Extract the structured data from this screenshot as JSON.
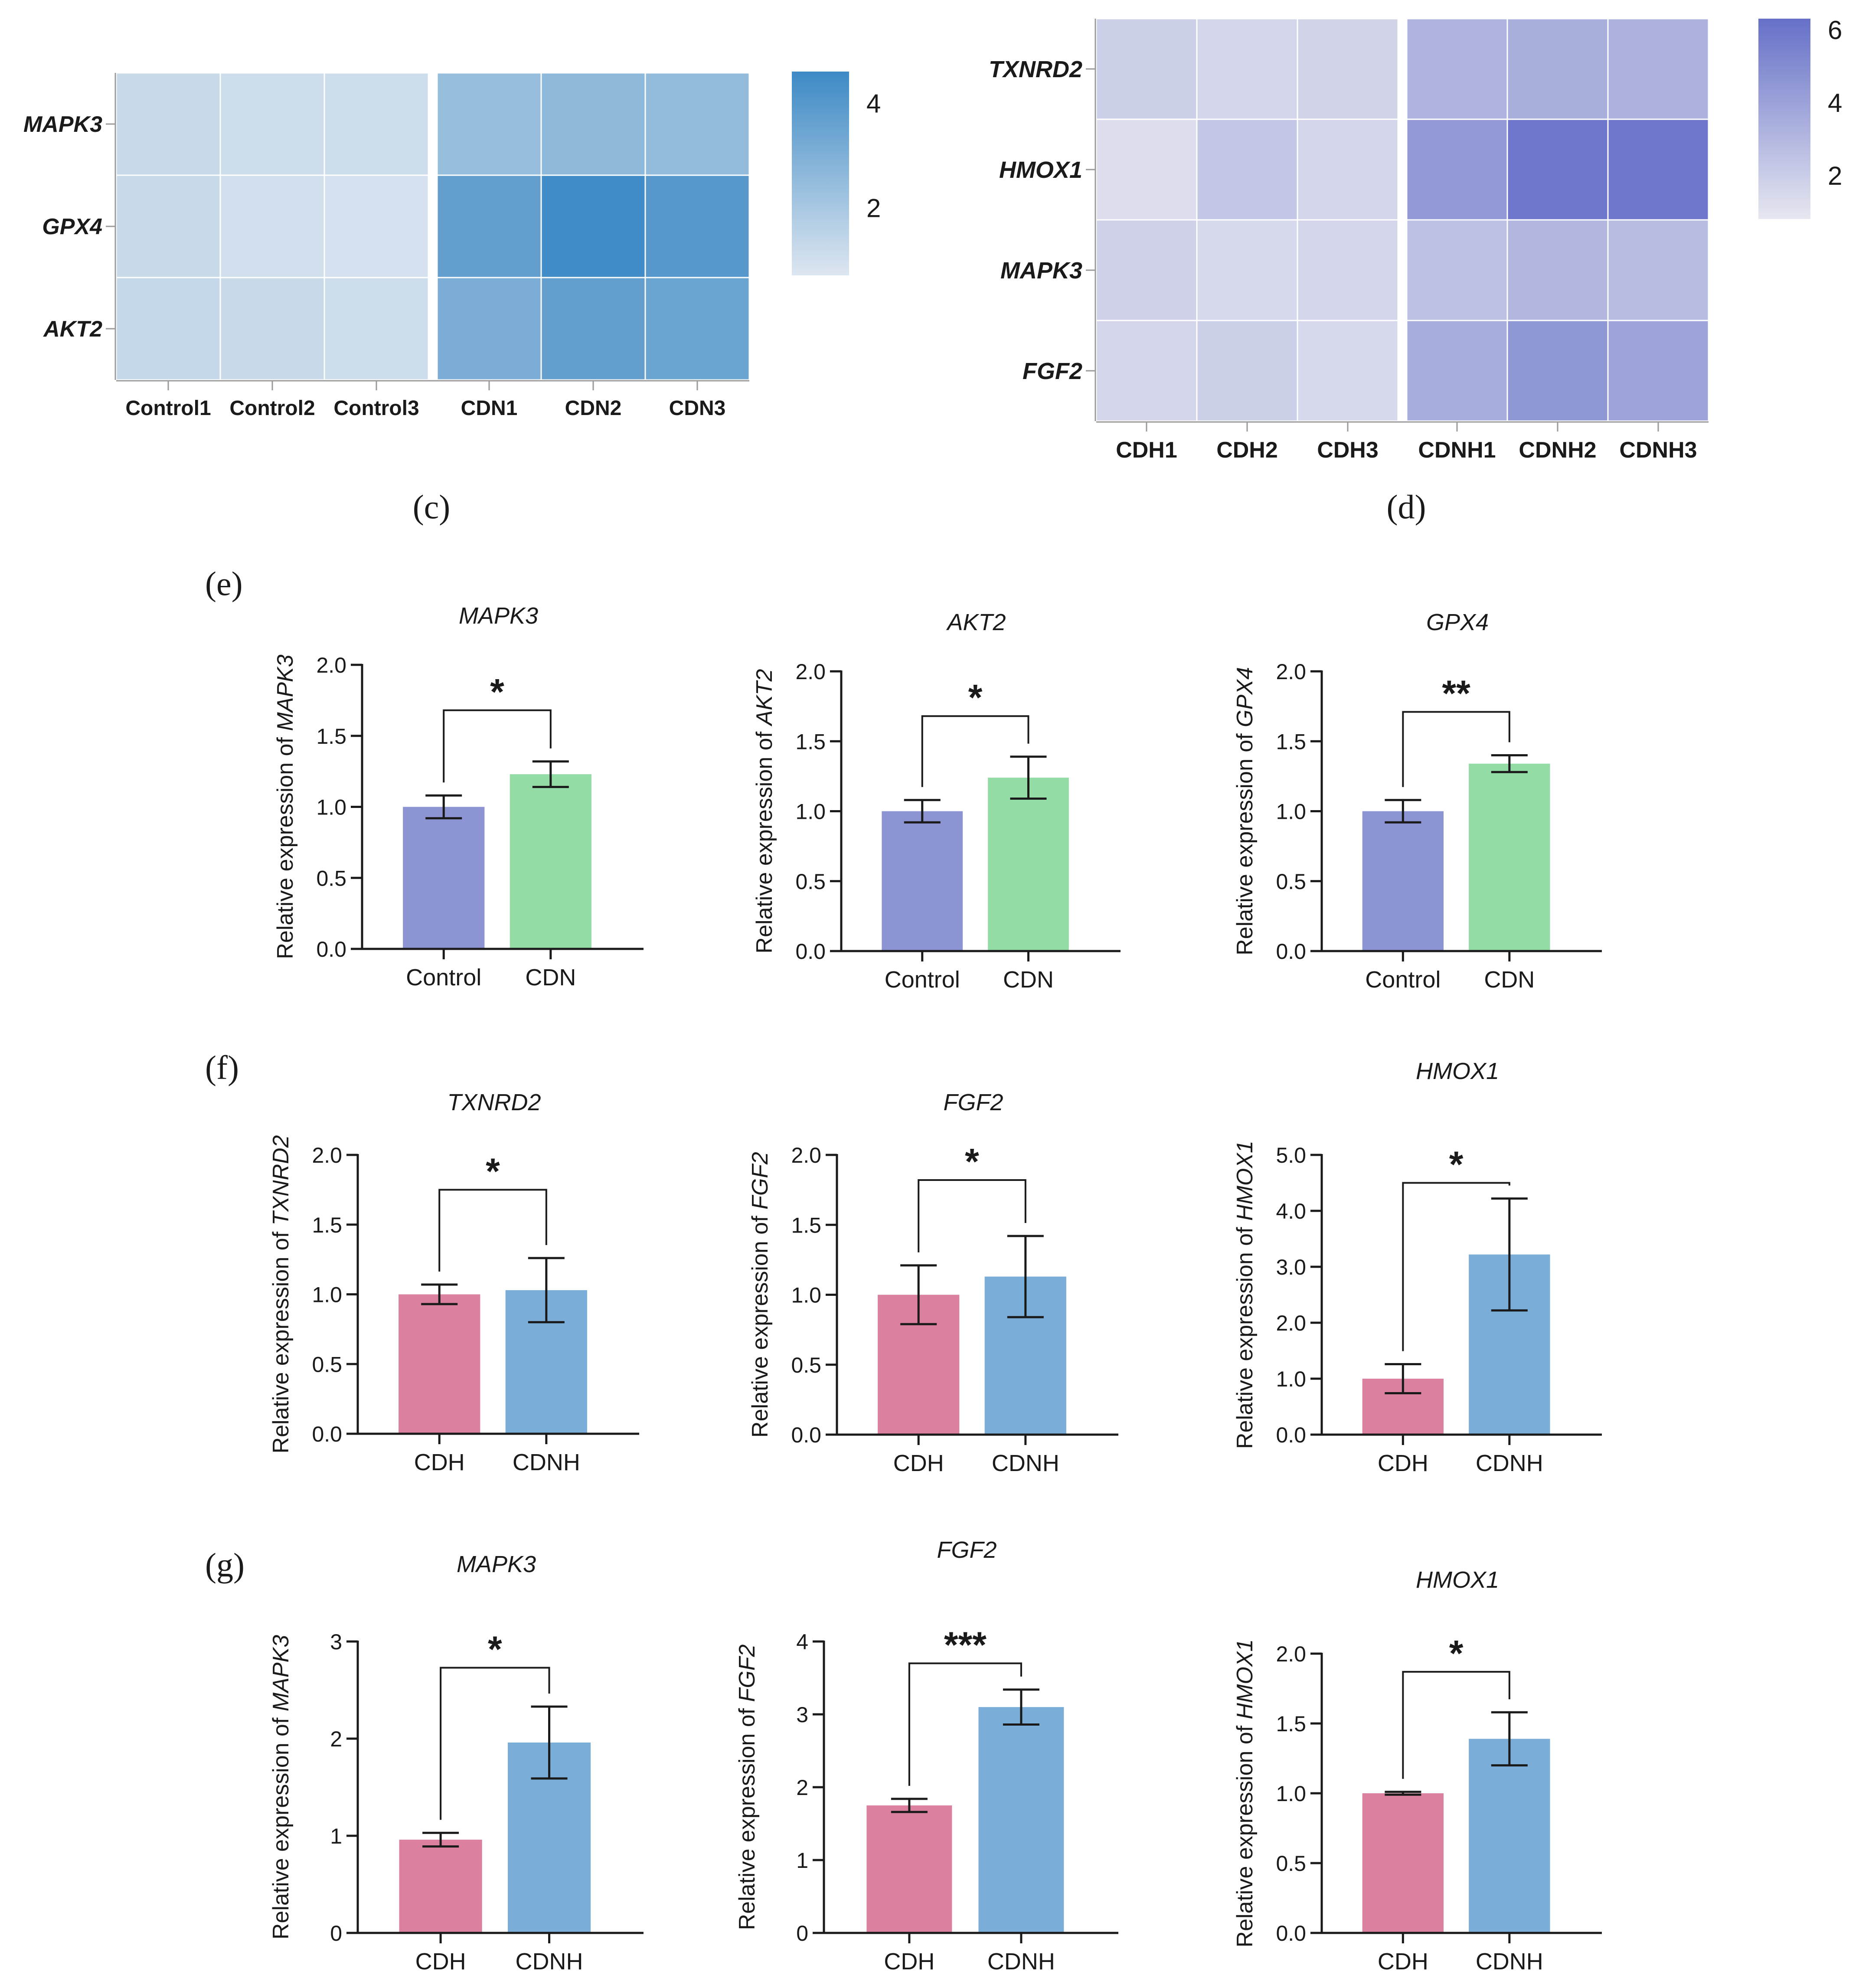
{
  "panels": {
    "c": "(c)",
    "d": "(d)",
    "e": "(e)",
    "f": "(f)",
    "g": "(g)"
  },
  "chart_data": [
    {
      "id": "c",
      "type": "heatmap",
      "title": "",
      "rows": [
        "MAPK3",
        "GPX4",
        "AKT2"
      ],
      "columns": [
        "Control1",
        "Control2",
        "Control3",
        "CDN1",
        "CDN2",
        "CDN3"
      ],
      "values": [
        [
          1.2,
          1.1,
          1.1,
          2.4,
          2.6,
          2.5
        ],
        [
          1.2,
          1.0,
          0.9,
          3.7,
          4.5,
          4.0
        ],
        [
          1.3,
          1.2,
          1.1,
          3.1,
          3.7,
          3.5
        ]
      ],
      "color_min": "#dde6f0",
      "color_max": "#3d8ac5",
      "value_range": [
        0.7,
        4.6
      ],
      "colorbar_ticks": [
        "4",
        "2"
      ],
      "colorbar_tick_values": [
        4,
        2
      ]
    },
    {
      "id": "d",
      "type": "heatmap",
      "title": "",
      "rows": [
        "TXNRD2",
        "HMOX1",
        "MAPK3",
        "FGF2"
      ],
      "columns": [
        "CDH1",
        "CDH2",
        "CDH3",
        "CDNH1",
        "CDNH2",
        "CDNH3"
      ],
      "values": [
        [
          1.9,
          1.6,
          1.7,
          3.2,
          3.4,
          3.3
        ],
        [
          1.2,
          2.3,
          1.6,
          4.4,
          6.0,
          6.0
        ],
        [
          1.8,
          1.5,
          1.6,
          2.6,
          3.0,
          2.8
        ],
        [
          1.6,
          1.9,
          1.5,
          3.5,
          4.5,
          3.9
        ]
      ],
      "color_min": "#e6e7f0",
      "color_max": "#6670c8",
      "value_range": [
        0.8,
        6.3
      ],
      "colorbar_ticks": [
        "6",
        "4",
        "2"
      ],
      "colorbar_tick_values": [
        6,
        4,
        2
      ]
    },
    {
      "id": "e1",
      "type": "bar",
      "title": "MAPK3",
      "ylabel": "Relative expression of MAPK3",
      "ylabel_prefix": "Relative expression of ",
      "ylabel_gene": "MAPK3",
      "categories": [
        "Control",
        "CDN"
      ],
      "values": [
        1.0,
        1.23
      ],
      "errors": [
        0.08,
        0.09
      ],
      "colors": [
        "#8c94d4",
        "#94dca6"
      ],
      "ylim": [
        0,
        2.0
      ],
      "yticks": [
        "0.0",
        "0.5",
        "1.0",
        "1.5",
        "2.0"
      ],
      "significance": "*",
      "bracket_y": 1.68
    },
    {
      "id": "e2",
      "type": "bar",
      "title": "AKT2",
      "ylabel": "Relative expression of AKT2",
      "ylabel_prefix": "Relative expression of ",
      "ylabel_gene": "AKT2",
      "categories": [
        "Control",
        "CDN"
      ],
      "values": [
        1.0,
        1.24
      ],
      "errors": [
        0.08,
        0.15
      ],
      "colors": [
        "#8c94d4",
        "#94dca6"
      ],
      "ylim": [
        0,
        2.0
      ],
      "yticks": [
        "0.0",
        "0.5",
        "1.0",
        "1.5",
        "2.0"
      ],
      "significance": "*",
      "bracket_y": 1.68
    },
    {
      "id": "e3",
      "type": "bar",
      "title": "GPX4",
      "ylabel": "Relative expression of GPX4",
      "ylabel_prefix": "Relative expression of ",
      "ylabel_gene": "GPX4",
      "categories": [
        "Control",
        "CDN"
      ],
      "values": [
        1.0,
        1.34
      ],
      "errors": [
        0.08,
        0.06
      ],
      "colors": [
        "#8c94d4",
        "#94dca6"
      ],
      "ylim": [
        0,
        2.0
      ],
      "yticks": [
        "0.0",
        "0.5",
        "1.0",
        "1.5",
        "2.0"
      ],
      "significance": "**",
      "bracket_y": 1.71
    },
    {
      "id": "f1",
      "type": "bar",
      "title": "TXNRD2",
      "ylabel": "Relative expression of TXNRD2",
      "ylabel_prefix": "Relative expression of ",
      "ylabel_gene": "TXNRD2",
      "categories": [
        "CDH",
        "CDNH"
      ],
      "values": [
        1.0,
        1.03
      ],
      "errors": [
        0.07,
        0.23
      ],
      "colors": [
        "#db809f",
        "#7aaed8"
      ],
      "ylim": [
        0,
        2.0
      ],
      "yticks": [
        "0.0",
        "0.5",
        "1.0",
        "1.5",
        "2.0"
      ],
      "significance": "*",
      "bracket_y": 1.75
    },
    {
      "id": "f2",
      "type": "bar",
      "title": "FGF2",
      "ylabel": "Relative expression of FGF2",
      "ylabel_prefix": "Relative expression of ",
      "ylabel_gene": "FGF2",
      "categories": [
        "CDH",
        "CDNH"
      ],
      "values": [
        1.0,
        1.13
      ],
      "errors": [
        0.21,
        0.29
      ],
      "colors": [
        "#db809f",
        "#7aaed8"
      ],
      "ylim": [
        0,
        2.0
      ],
      "yticks": [
        "0.0",
        "0.5",
        "1.0",
        "1.5",
        "2.0"
      ],
      "significance": "*",
      "bracket_y": 1.82
    },
    {
      "id": "f3",
      "type": "bar",
      "title": "HMOX1",
      "ylabel": "Relative expression of HMOX1",
      "ylabel_prefix": "Relative expression of ",
      "ylabel_gene": "HMOX1",
      "categories": [
        "CDH",
        "CDNH"
      ],
      "values": [
        1.0,
        3.22
      ],
      "errors": [
        0.26,
        1.0
      ],
      "colors": [
        "#db809f",
        "#7aaed8"
      ],
      "ylim": [
        0,
        5.0
      ],
      "yticks": [
        "0.0",
        "1.0",
        "2.0",
        "3.0",
        "4.0",
        "5.0"
      ],
      "significance": "*",
      "bracket_y": 4.5
    },
    {
      "id": "g1",
      "type": "bar",
      "title": "MAPK3",
      "ylabel": "Relative expression of MAPK3",
      "ylabel_prefix": "Relative expression of ",
      "ylabel_gene": "MAPK3",
      "categories": [
        "CDH",
        "CDNH"
      ],
      "values": [
        0.96,
        1.96
      ],
      "errors": [
        0.07,
        0.37
      ],
      "colors": [
        "#db809f",
        "#7aaed8"
      ],
      "ylim": [
        0,
        3
      ],
      "yticks": [
        "0",
        "1",
        "2",
        "3"
      ],
      "significance": "*",
      "bracket_y": 2.73
    },
    {
      "id": "g2",
      "type": "bar",
      "title": "FGF2",
      "ylabel": "Relative expression of FGF2",
      "ylabel_prefix": "Relative expression of ",
      "ylabel_gene": "FGF2",
      "categories": [
        "CDH",
        "CDNH"
      ],
      "values": [
        1.75,
        3.1
      ],
      "errors": [
        0.09,
        0.24
      ],
      "colors": [
        "#db809f",
        "#7aaed8"
      ],
      "ylim": [
        0,
        4
      ],
      "yticks": [
        "0",
        "1",
        "2",
        "3",
        "4"
      ],
      "significance": "***",
      "bracket_y": 3.7
    },
    {
      "id": "g3",
      "type": "bar",
      "title": "HMOX1",
      "ylabel": "Relative expression of HMOX1",
      "ylabel_prefix": "Relative expression of ",
      "ylabel_gene": "HMOX1",
      "categories": [
        "CDH",
        "CDNH"
      ],
      "values": [
        1.0,
        1.39
      ],
      "errors": [
        0.01,
        0.19
      ],
      "colors": [
        "#db809f",
        "#7aaed8"
      ],
      "ylim": [
        0,
        2.0
      ],
      "yticks": [
        "0.0",
        "0.5",
        "1.0",
        "1.5",
        "2.0"
      ],
      "significance": "*",
      "bracket_y": 1.87
    }
  ]
}
